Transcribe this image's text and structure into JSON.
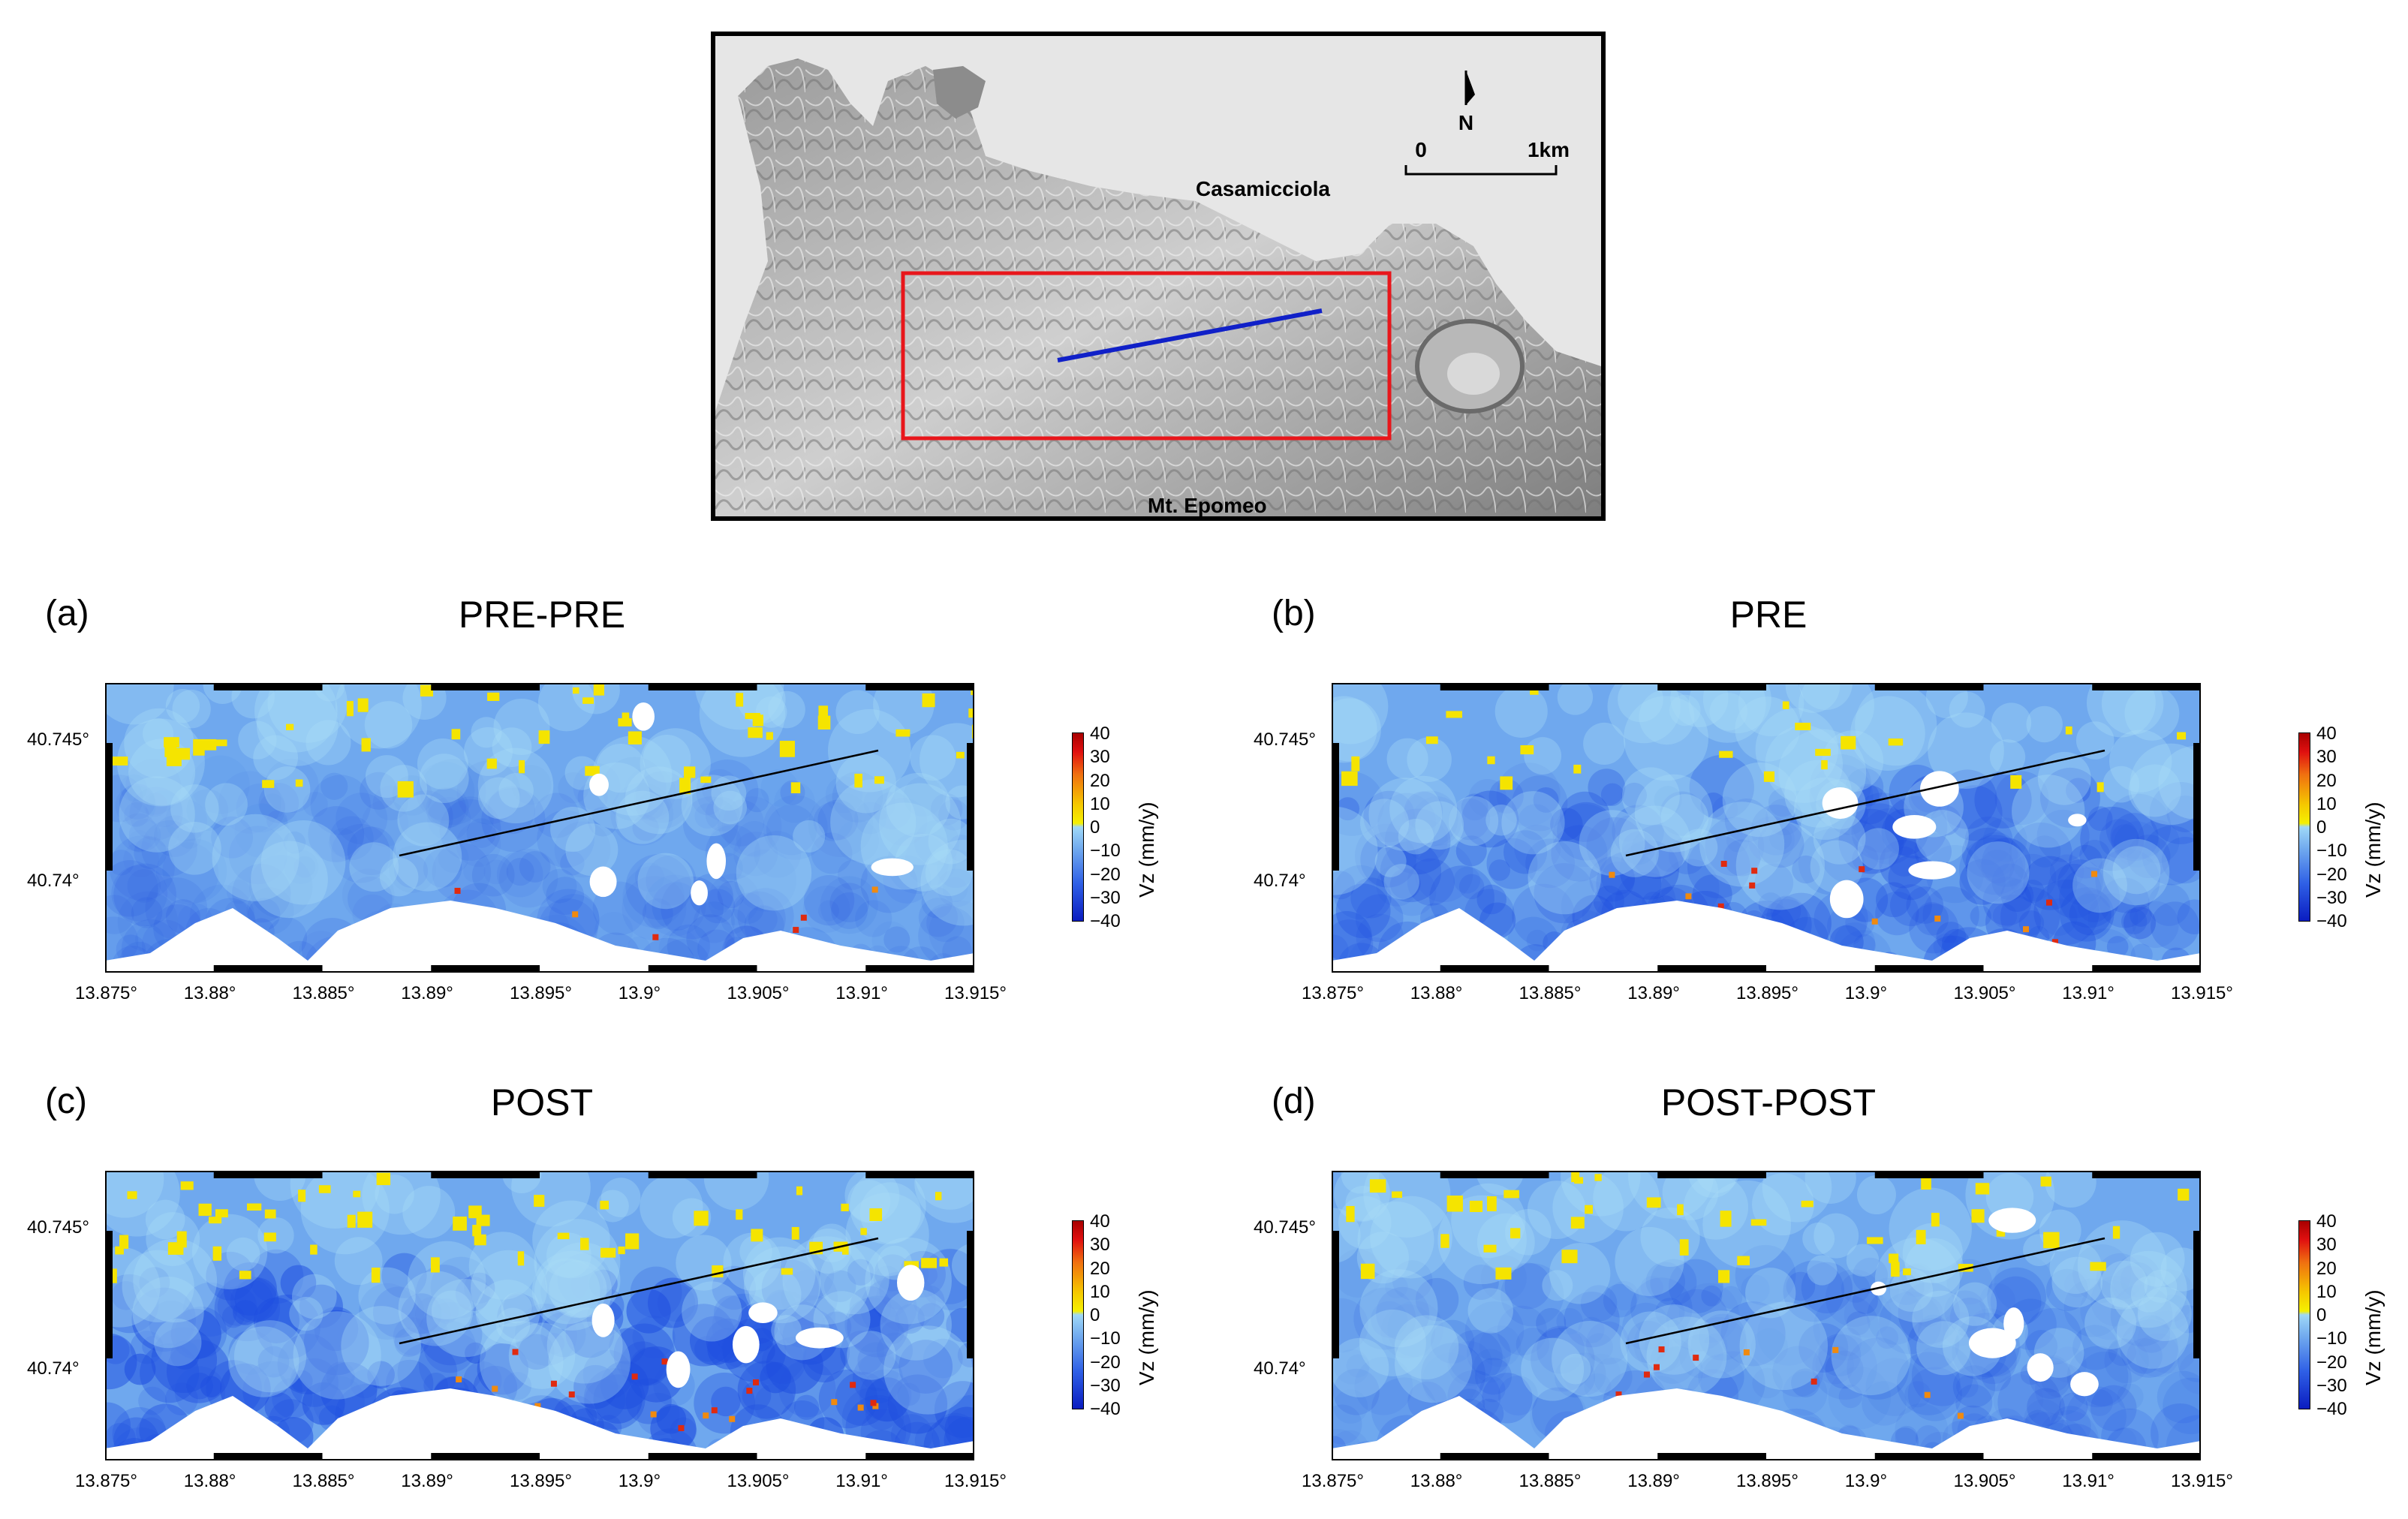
{
  "locator_map": {
    "town_label": "Casamicciola",
    "mountain_label": "Mt. Epomeo",
    "north_label": "N",
    "scale_start": "0",
    "scale_end": "1km",
    "colors": {
      "study_area_box": "#e8161b",
      "profile_line": "#1020c8"
    }
  },
  "panels": [
    {
      "letter": "(a)",
      "title": "PRE-PRE",
      "yellow_level": 0.35,
      "dark_level": 0.25
    },
    {
      "letter": "(b)",
      "title": "PRE",
      "yellow_level": 0.15,
      "dark_level": 0.6
    },
    {
      "letter": "(c)",
      "title": "POST",
      "yellow_level": 0.4,
      "dark_level": 0.9
    },
    {
      "letter": "(d)",
      "title": "POST-POST",
      "yellow_level": 0.3,
      "dark_level": 0.35
    }
  ],
  "axes": {
    "x_ticks": [
      "13.875°",
      "13.88°",
      "13.885°",
      "13.89°",
      "13.895°",
      "13.9°",
      "13.905°",
      "13.91°",
      "13.915°"
    ],
    "y_ticks": [
      "40.745°",
      "40.74°"
    ]
  },
  "colorbar": {
    "title": "Vz (mm/y)",
    "ticks": [
      "40",
      "30",
      "20",
      "10",
      "0",
      "−10",
      "−20",
      "−30",
      "−40"
    ],
    "range": [
      -40,
      40
    ]
  }
}
